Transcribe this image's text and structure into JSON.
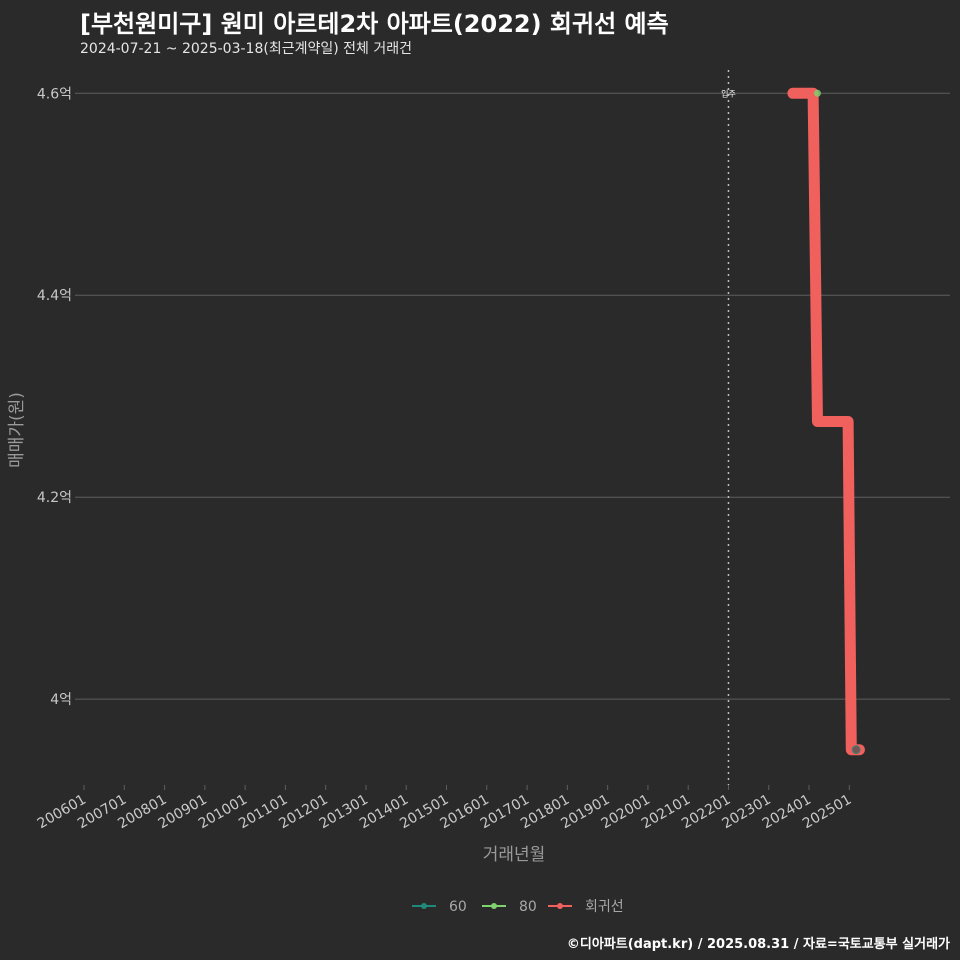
{
  "header": {
    "title": "[부천원미구] 원미 아르테2차 아파트(2022) 회귀선 예측",
    "subtitle": "2024-07-21 ~ 2025-03-18(최근계약일) 전체 거래건"
  },
  "caption": "©디아파트(dapt.kr) / 2025.08.31 / 자료=국토교통부 실거래가",
  "colors": {
    "background": "#2b2a2b",
    "grid": "#5e5e5e",
    "series_60": "#1f8a7a",
    "series_80": "#7ed36e",
    "regression": "#f0605d",
    "vline": "#bdbdbd"
  },
  "chart_data": {
    "type": "line",
    "title": "[부천원미구] 원미 아르테2차 아파트(2022) 회귀선 예측",
    "xlabel": "거래년월",
    "ylabel": "매매가(원)",
    "x_range": [
      2005.9,
      2027.5
    ],
    "y_range": [
      3.915,
      4.628
    ],
    "x_ticks": [
      {
        "label": "200601",
        "value": 2006.0
      },
      {
        "label": "200701",
        "value": 2007.0
      },
      {
        "label": "200801",
        "value": 2008.0
      },
      {
        "label": "200901",
        "value": 2009.0
      },
      {
        "label": "201001",
        "value": 2010.0
      },
      {
        "label": "201101",
        "value": 2011.0
      },
      {
        "label": "201201",
        "value": 2012.0
      },
      {
        "label": "201301",
        "value": 2013.0
      },
      {
        "label": "201401",
        "value": 2014.0
      },
      {
        "label": "201501",
        "value": 2015.0
      },
      {
        "label": "201601",
        "value": 2016.0
      },
      {
        "label": "201701",
        "value": 2017.0
      },
      {
        "label": "201801",
        "value": 2018.0
      },
      {
        "label": "201901",
        "value": 2019.0
      },
      {
        "label": "202001",
        "value": 2020.0
      },
      {
        "label": "202101",
        "value": 2021.0
      },
      {
        "label": "202201",
        "value": 2022.0
      },
      {
        "label": "202301",
        "value": 2023.0
      },
      {
        "label": "202401",
        "value": 2024.0
      },
      {
        "label": "202501",
        "value": 2025.0
      }
    ],
    "y_ticks": [
      {
        "label": "4억",
        "value": 4.0
      },
      {
        "label": "4.2억",
        "value": 4.2
      },
      {
        "label": "4.4억",
        "value": 4.4
      },
      {
        "label": "4.6억",
        "value": 4.6
      }
    ],
    "vline": {
      "x": 2022.0,
      "label": "입주"
    },
    "series": [
      {
        "name": "60",
        "points": [
          {
            "x": 2025.17,
            "y": 3.95
          }
        ]
      },
      {
        "name": "80",
        "points": [
          {
            "x": 2024.21,
            "y": 4.6
          }
        ]
      },
      {
        "name": "회귀선",
        "points": [
          {
            "x": 2023.6,
            "y": 4.6
          },
          {
            "x": 2024.1,
            "y": 4.6
          },
          {
            "x": 2024.21,
            "y": 4.275
          },
          {
            "x": 2024.7,
            "y": 4.275
          },
          {
            "x": 2024.97,
            "y": 4.275
          },
          {
            "x": 2025.05,
            "y": 3.95
          },
          {
            "x": 2025.25,
            "y": 3.95
          }
        ]
      }
    ],
    "legend": {
      "position": "bottom",
      "items": [
        {
          "label": "60",
          "color": "#1f8a7a"
        },
        {
          "label": "80",
          "color": "#7ed36e"
        },
        {
          "label": "회귀선",
          "color": "#f0605d"
        }
      ]
    }
  }
}
